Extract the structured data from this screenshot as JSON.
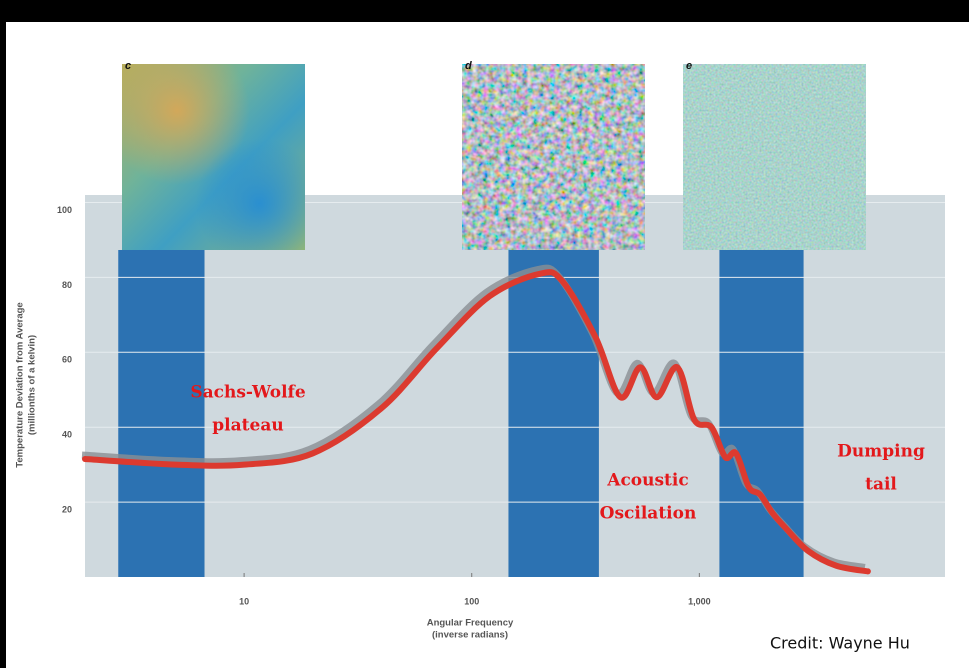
{
  "chart_data": {
    "type": "line",
    "xscale": "log",
    "xlim": [
      2,
      12000
    ],
    "ylim": [
      0,
      102
    ],
    "xticks": [
      10,
      100,
      {
        "value": 1000,
        "label": "1,000"
      }
    ],
    "yticks": [
      20,
      40,
      60,
      80,
      100
    ],
    "grid": true,
    "xlabel": "Angular Frequency",
    "xlabel_sub": "(inverse radians)",
    "ylabel": "Temperature Deviation from Average",
    "ylabel_sub": "(millionths of a kelvin)",
    "background": "#cfd9de",
    "band_color": "#2c72b2",
    "bands": [
      {
        "x0": 2.8,
        "x1": 6.7
      },
      {
        "x0": 145,
        "x1": 362
      },
      {
        "x0": 1225,
        "x1": 2870
      }
    ],
    "panels": [
      {
        "label": "c"
      },
      {
        "label": "d"
      },
      {
        "label": "e"
      }
    ],
    "series": [
      {
        "color": "#dc3a2f",
        "x": [
          2,
          5,
          10,
          20,
          40,
          70,
          120,
          200,
          250,
          350,
          450,
          550,
          650,
          800,
          950,
          1130,
          1300,
          1450,
          1650,
          1850,
          2100,
          2400,
          3000,
          4000,
          5500
        ],
        "values": [
          31.5,
          30,
          30,
          33,
          45,
          61,
          75,
          81,
          79,
          64,
          48,
          56,
          48,
          56,
          42,
          40,
          32,
          33,
          24,
          22,
          17,
          13,
          7,
          3,
          1.5
        ]
      }
    ],
    "annotations": [
      {
        "lines": [
          "Sachs-Wolfe",
          "plateau"
        ]
      },
      {
        "lines": [
          "Acoustic",
          "Oscilation"
        ]
      },
      {
        "lines": [
          "Dumping",
          "tail"
        ]
      }
    ],
    "credit": "Credit: Wayne Hu"
  }
}
